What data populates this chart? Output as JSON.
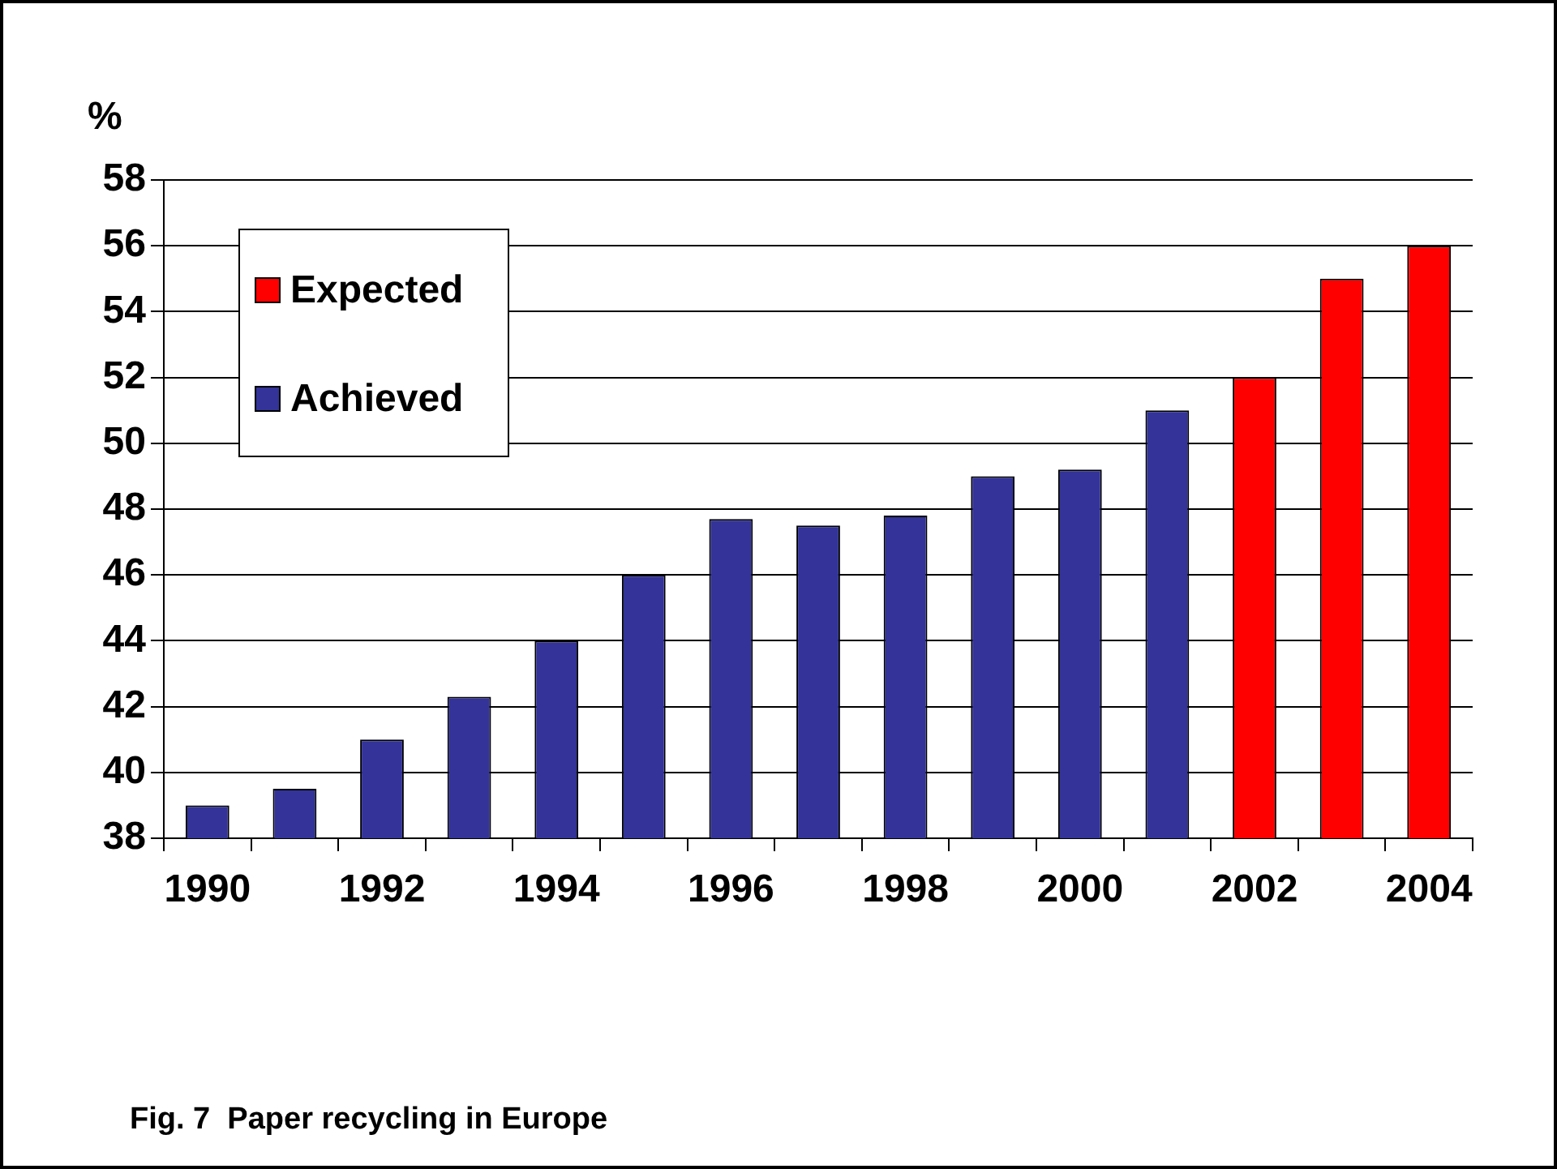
{
  "chart_data": {
    "type": "bar",
    "ylabel": "%",
    "annotations": [
      "Fig. 7  Paper recycling in Europe"
    ],
    "categories": [
      "1990",
      null,
      "1992",
      null,
      "1994",
      null,
      "1996",
      null,
      "1998",
      null,
      "2000",
      null,
      "2002",
      null,
      "2004"
    ],
    "series": [
      {
        "name": "Expected",
        "color": "#ff0000",
        "values": [
          null,
          null,
          null,
          null,
          null,
          null,
          null,
          null,
          null,
          null,
          null,
          null,
          52,
          55,
          56
        ]
      },
      {
        "name": "Achieved",
        "color": "#333399",
        "values": [
          39,
          39.5,
          41,
          42.3,
          44,
          46,
          47.7,
          47.5,
          47.8,
          49,
          49.2,
          51,
          null,
          null,
          null
        ]
      }
    ],
    "ylim": [
      38,
      58
    ],
    "yticks": [
      38,
      40,
      42,
      44,
      46,
      48,
      50,
      52,
      54,
      56,
      58
    ],
    "grid": "y",
    "legend": "top left"
  }
}
